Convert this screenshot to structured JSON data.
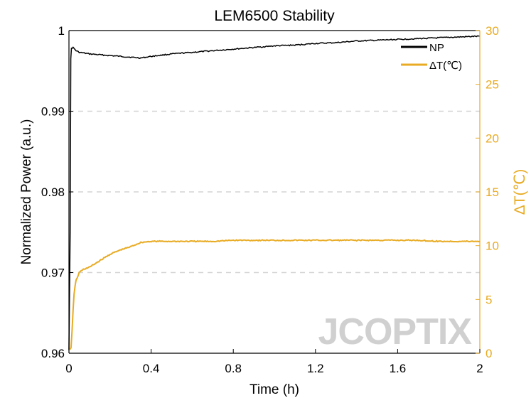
{
  "chart_data": {
    "type": "line",
    "title": "LEM6500 Stability",
    "xlabel": "Time (h)",
    "ylabel_left": "Normalized Power (a.u.)",
    "ylabel_right": "ΔT(℃)",
    "xlim": [
      0,
      2
    ],
    "ylim_left": [
      0.96,
      1.0
    ],
    "ylim_right": [
      0,
      30
    ],
    "x_ticks": [
      {
        "value": 0,
        "label": "0"
      },
      {
        "value": 0.4,
        "label": "0.4"
      },
      {
        "value": 0.8,
        "label": "0.8"
      },
      {
        "value": 1.2,
        "label": "1.2"
      },
      {
        "value": 1.6,
        "label": "1.6"
      },
      {
        "value": 2,
        "label": "2"
      }
    ],
    "y_left_ticks": [
      {
        "value": 0.96,
        "label": "0.96"
      },
      {
        "value": 0.97,
        "label": "0.97"
      },
      {
        "value": 0.98,
        "label": "0.98"
      },
      {
        "value": 0.99,
        "label": "0.99"
      },
      {
        "value": 1.0,
        "label": "1"
      }
    ],
    "y_right_ticks": [
      {
        "value": 0,
        "label": "0"
      },
      {
        "value": 5,
        "label": "5"
      },
      {
        "value": 10,
        "label": "10"
      },
      {
        "value": 15,
        "label": "15"
      },
      {
        "value": 20,
        "label": "20"
      },
      {
        "value": 25,
        "label": "25"
      },
      {
        "value": 30,
        "label": "30"
      }
    ],
    "grid": "horizontal-dashed",
    "legend_position": "top-right",
    "series": [
      {
        "name": "NP",
        "axis": "left",
        "color": "#000000",
        "x": [
          0,
          0.006,
          0.009,
          0.012,
          0.02,
          0.035,
          0.05,
          0.1,
          0.2,
          0.3,
          0.35,
          0.4,
          0.5,
          0.6,
          0.7,
          0.8,
          0.9,
          1.0,
          1.1,
          1.2,
          1.3,
          1.4,
          1.5,
          1.6,
          1.7,
          1.8,
          1.9,
          2.0
        ],
        "y": [
          0.9604,
          0.975,
          0.9965,
          0.9978,
          0.9979,
          0.9975,
          0.9973,
          0.9971,
          0.9969,
          0.9967,
          0.9966,
          0.9968,
          0.9971,
          0.9973,
          0.9975,
          0.9977,
          0.9979,
          0.9981,
          0.9982,
          0.9984,
          0.9985,
          0.9987,
          0.9988,
          0.9989,
          0.999,
          0.9991,
          0.9992,
          0.9993
        ]
      },
      {
        "name": "ΔT(℃)",
        "axis": "right",
        "color": "#E8AB23",
        "x": [
          0,
          0.01,
          0.015,
          0.02,
          0.025,
          0.03,
          0.035,
          0.04,
          0.05,
          0.07,
          0.1,
          0.15,
          0.2,
          0.25,
          0.3,
          0.35,
          0.4,
          0.5,
          0.6,
          0.7,
          0.8,
          0.9,
          1.0,
          1.1,
          1.2,
          1.3,
          1.4,
          1.5,
          1.6,
          1.7,
          1.8,
          1.9,
          2.0
        ],
        "y": [
          0.3,
          0.5,
          2.0,
          4.0,
          5.5,
          6.3,
          6.8,
          7.0,
          7.5,
          7.8,
          8.0,
          8.6,
          9.2,
          9.6,
          9.9,
          10.3,
          10.4,
          10.4,
          10.4,
          10.4,
          10.5,
          10.5,
          10.5,
          10.5,
          10.5,
          10.5,
          10.5,
          10.5,
          10.5,
          10.5,
          10.4,
          10.4,
          10.4
        ]
      }
    ],
    "watermark": "JCOPTIX"
  }
}
